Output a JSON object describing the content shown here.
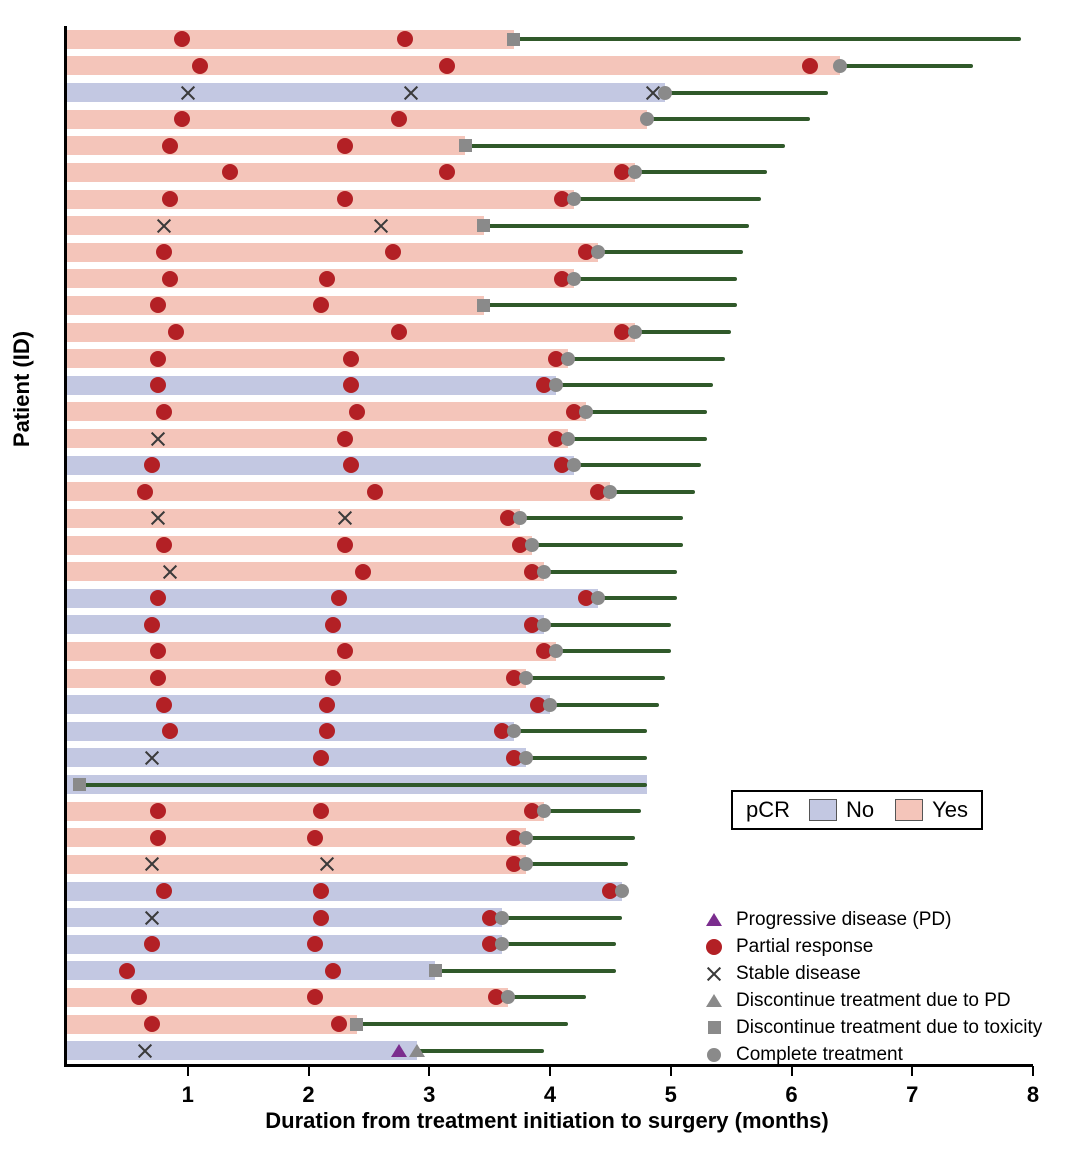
{
  "axes": {
    "x_label": "Duration from treatment initiation to surgery (months)",
    "y_label": "Patient (ID)"
  },
  "legend": {
    "pcr_title": "pCR",
    "pcr_no": "No",
    "pcr_yes": "Yes",
    "markers": [
      {
        "type": "progressive-disease",
        "label": "Progressive disease (PD)"
      },
      {
        "type": "partial-response",
        "label": "Partial response"
      },
      {
        "type": "stable-disease",
        "label": "Stable disease"
      },
      {
        "type": "discontinue-pd",
        "label": "Discontinue treatment due to PD"
      },
      {
        "type": "discontinue-toxicity",
        "label": "Discontinue treatment due to toxicity"
      },
      {
        "type": "complete-treatment",
        "label": "Complete treatment"
      }
    ]
  },
  "colors": {
    "pcr_yes": "#f4c5ba",
    "pcr_no": "#c3c8e2",
    "line": "#30592a",
    "partial_response": "#b32025",
    "gray_marker": "#8a8a8a",
    "progressive": "#7b2d8e",
    "stable_x": "#3a3a3a"
  },
  "chart_data": {
    "type": "swimmer",
    "title": "",
    "xlabel": "Duration from treatment initiation to surgery (months)",
    "ylabel": "Patient (ID)",
    "xlim": [
      0,
      8
    ],
    "x_ticks": [
      1,
      2,
      3,
      4,
      5,
      6,
      7,
      8
    ],
    "marker_types": {
      "PR": "Partial response",
      "SD": "Stable disease",
      "PD": "Progressive disease (PD)",
      "DPD": "Discontinue treatment due to PD",
      "DTOX": "Discontinue treatment due to toxicity",
      "CT": "Complete treatment"
    },
    "rows": [
      {
        "pcr": "Yes",
        "bar_end": 3.7,
        "surgery": 7.9,
        "markers": [
          {
            "t": "PR",
            "x": 0.95
          },
          {
            "t": "PR",
            "x": 2.8
          },
          {
            "t": "DTOX",
            "x": 3.7
          }
        ]
      },
      {
        "pcr": "Yes",
        "bar_end": 6.4,
        "surgery": 7.5,
        "markers": [
          {
            "t": "PR",
            "x": 1.1
          },
          {
            "t": "PR",
            "x": 3.15
          },
          {
            "t": "PR",
            "x": 6.15
          },
          {
            "t": "CT",
            "x": 6.4
          }
        ]
      },
      {
        "pcr": "No",
        "bar_end": 4.95,
        "surgery": 6.3,
        "markers": [
          {
            "t": "SD",
            "x": 1.0
          },
          {
            "t": "SD",
            "x": 2.85
          },
          {
            "t": "SD",
            "x": 4.85
          },
          {
            "t": "CT",
            "x": 4.95
          }
        ]
      },
      {
        "pcr": "Yes",
        "bar_end": 4.8,
        "surgery": 6.15,
        "markers": [
          {
            "t": "PR",
            "x": 0.95
          },
          {
            "t": "PR",
            "x": 2.75
          },
          {
            "t": "CT",
            "x": 4.8
          }
        ]
      },
      {
        "pcr": "Yes",
        "bar_end": 3.3,
        "surgery": 5.95,
        "markers": [
          {
            "t": "PR",
            "x": 0.85
          },
          {
            "t": "PR",
            "x": 2.3
          },
          {
            "t": "DTOX",
            "x": 3.3
          }
        ]
      },
      {
        "pcr": "Yes",
        "bar_end": 4.7,
        "surgery": 5.8,
        "markers": [
          {
            "t": "PR",
            "x": 1.35
          },
          {
            "t": "PR",
            "x": 3.15
          },
          {
            "t": "PR",
            "x": 4.6
          },
          {
            "t": "CT",
            "x": 4.7
          }
        ]
      },
      {
        "pcr": "Yes",
        "bar_end": 4.2,
        "surgery": 5.75,
        "markers": [
          {
            "t": "PR",
            "x": 0.85
          },
          {
            "t": "PR",
            "x": 2.3
          },
          {
            "t": "PR",
            "x": 4.1
          },
          {
            "t": "CT",
            "x": 4.2
          }
        ]
      },
      {
        "pcr": "Yes",
        "bar_end": 3.45,
        "surgery": 5.65,
        "markers": [
          {
            "t": "SD",
            "x": 0.8
          },
          {
            "t": "SD",
            "x": 2.6
          },
          {
            "t": "DTOX",
            "x": 3.45
          }
        ]
      },
      {
        "pcr": "Yes",
        "bar_end": 4.4,
        "surgery": 5.6,
        "markers": [
          {
            "t": "PR",
            "x": 0.8
          },
          {
            "t": "PR",
            "x": 2.7
          },
          {
            "t": "PR",
            "x": 4.3
          },
          {
            "t": "CT",
            "x": 4.4
          }
        ]
      },
      {
        "pcr": "Yes",
        "bar_end": 4.2,
        "surgery": 5.55,
        "markers": [
          {
            "t": "PR",
            "x": 0.85
          },
          {
            "t": "PR",
            "x": 2.15
          },
          {
            "t": "PR",
            "x": 4.1
          },
          {
            "t": "CT",
            "x": 4.2
          }
        ]
      },
      {
        "pcr": "Yes",
        "bar_end": 3.45,
        "surgery": 5.55,
        "markers": [
          {
            "t": "PR",
            "x": 0.75
          },
          {
            "t": "PR",
            "x": 2.1
          },
          {
            "t": "DTOX",
            "x": 3.45
          }
        ]
      },
      {
        "pcr": "Yes",
        "bar_end": 4.7,
        "surgery": 5.5,
        "markers": [
          {
            "t": "PR",
            "x": 0.9
          },
          {
            "t": "PR",
            "x": 2.75
          },
          {
            "t": "PR",
            "x": 4.6
          },
          {
            "t": "CT",
            "x": 4.7
          }
        ]
      },
      {
        "pcr": "Yes",
        "bar_end": 4.15,
        "surgery": 5.45,
        "markers": [
          {
            "t": "PR",
            "x": 0.75
          },
          {
            "t": "PR",
            "x": 2.35
          },
          {
            "t": "PR",
            "x": 4.05
          },
          {
            "t": "CT",
            "x": 4.15
          }
        ]
      },
      {
        "pcr": "No",
        "bar_end": 4.05,
        "surgery": 5.35,
        "markers": [
          {
            "t": "PR",
            "x": 0.75
          },
          {
            "t": "PR",
            "x": 2.35
          },
          {
            "t": "PR",
            "x": 3.95
          },
          {
            "t": "CT",
            "x": 4.05
          }
        ]
      },
      {
        "pcr": "Yes",
        "bar_end": 4.3,
        "surgery": 5.3,
        "markers": [
          {
            "t": "PR",
            "x": 0.8
          },
          {
            "t": "PR",
            "x": 2.4
          },
          {
            "t": "PR",
            "x": 4.2
          },
          {
            "t": "CT",
            "x": 4.3
          }
        ]
      },
      {
        "pcr": "Yes",
        "bar_end": 4.15,
        "surgery": 5.3,
        "markers": [
          {
            "t": "SD",
            "x": 0.75
          },
          {
            "t": "PR",
            "x": 2.3
          },
          {
            "t": "PR",
            "x": 4.05
          },
          {
            "t": "CT",
            "x": 4.15
          }
        ]
      },
      {
        "pcr": "No",
        "bar_end": 4.2,
        "surgery": 5.25,
        "markers": [
          {
            "t": "PR",
            "x": 0.7
          },
          {
            "t": "PR",
            "x": 2.35
          },
          {
            "t": "PR",
            "x": 4.1
          },
          {
            "t": "CT",
            "x": 4.2
          }
        ]
      },
      {
        "pcr": "Yes",
        "bar_end": 4.5,
        "surgery": 5.2,
        "markers": [
          {
            "t": "PR",
            "x": 0.65
          },
          {
            "t": "PR",
            "x": 2.55
          },
          {
            "t": "PR",
            "x": 4.4
          },
          {
            "t": "CT",
            "x": 4.5
          }
        ]
      },
      {
        "pcr": "Yes",
        "bar_end": 3.75,
        "surgery": 5.1,
        "markers": [
          {
            "t": "SD",
            "x": 0.75
          },
          {
            "t": "SD",
            "x": 2.3
          },
          {
            "t": "PR",
            "x": 3.65
          },
          {
            "t": "CT",
            "x": 3.75
          }
        ]
      },
      {
        "pcr": "Yes",
        "bar_end": 3.85,
        "surgery": 5.1,
        "markers": [
          {
            "t": "PR",
            "x": 0.8
          },
          {
            "t": "PR",
            "x": 2.3
          },
          {
            "t": "PR",
            "x": 3.75
          },
          {
            "t": "CT",
            "x": 3.85
          }
        ]
      },
      {
        "pcr": "Yes",
        "bar_end": 3.95,
        "surgery": 5.05,
        "markers": [
          {
            "t": "SD",
            "x": 0.85
          },
          {
            "t": "PR",
            "x": 2.45
          },
          {
            "t": "PR",
            "x": 3.85
          },
          {
            "t": "CT",
            "x": 3.95
          }
        ]
      },
      {
        "pcr": "No",
        "bar_end": 4.4,
        "surgery": 5.05,
        "markers": [
          {
            "t": "PR",
            "x": 0.75
          },
          {
            "t": "PR",
            "x": 2.25
          },
          {
            "t": "PR",
            "x": 4.3
          },
          {
            "t": "CT",
            "x": 4.4
          }
        ]
      },
      {
        "pcr": "No",
        "bar_end": 3.95,
        "surgery": 5.0,
        "markers": [
          {
            "t": "PR",
            "x": 0.7
          },
          {
            "t": "PR",
            "x": 2.2
          },
          {
            "t": "PR",
            "x": 3.85
          },
          {
            "t": "CT",
            "x": 3.95
          }
        ]
      },
      {
        "pcr": "Yes",
        "bar_end": 4.05,
        "surgery": 5.0,
        "markers": [
          {
            "t": "PR",
            "x": 0.75
          },
          {
            "t": "PR",
            "x": 2.3
          },
          {
            "t": "PR",
            "x": 3.95
          },
          {
            "t": "CT",
            "x": 4.05
          }
        ]
      },
      {
        "pcr": "Yes",
        "bar_end": 3.8,
        "surgery": 4.95,
        "markers": [
          {
            "t": "PR",
            "x": 0.75
          },
          {
            "t": "PR",
            "x": 2.2
          },
          {
            "t": "PR",
            "x": 3.7
          },
          {
            "t": "CT",
            "x": 3.8
          }
        ]
      },
      {
        "pcr": "No",
        "bar_end": 4.0,
        "surgery": 4.9,
        "markers": [
          {
            "t": "PR",
            "x": 0.8
          },
          {
            "t": "PR",
            "x": 2.15
          },
          {
            "t": "PR",
            "x": 3.9
          },
          {
            "t": "CT",
            "x": 4.0
          }
        ]
      },
      {
        "pcr": "No",
        "bar_end": 3.7,
        "surgery": 4.8,
        "markers": [
          {
            "t": "PR",
            "x": 0.85
          },
          {
            "t": "PR",
            "x": 2.15
          },
          {
            "t": "PR",
            "x": 3.6
          },
          {
            "t": "CT",
            "x": 3.7
          }
        ]
      },
      {
        "pcr": "No",
        "bar_end": 3.8,
        "surgery": 4.8,
        "markers": [
          {
            "t": "SD",
            "x": 0.7
          },
          {
            "t": "PR",
            "x": 2.1
          },
          {
            "t": "PR",
            "x": 3.7
          },
          {
            "t": "CT",
            "x": 3.8
          }
        ]
      },
      {
        "pcr": "No",
        "bar_end": 4.8,
        "surgery": 4.8,
        "markers": [
          {
            "t": "DTOX",
            "x": 0.1
          }
        ]
      },
      {
        "pcr": "Yes",
        "bar_end": 3.95,
        "surgery": 4.75,
        "markers": [
          {
            "t": "PR",
            "x": 0.75
          },
          {
            "t": "PR",
            "x": 2.1
          },
          {
            "t": "PR",
            "x": 3.85
          },
          {
            "t": "CT",
            "x": 3.95
          }
        ]
      },
      {
        "pcr": "Yes",
        "bar_end": 3.8,
        "surgery": 4.7,
        "markers": [
          {
            "t": "PR",
            "x": 0.75
          },
          {
            "t": "PR",
            "x": 2.05
          },
          {
            "t": "PR",
            "x": 3.7
          },
          {
            "t": "CT",
            "x": 3.8
          }
        ]
      },
      {
        "pcr": "Yes",
        "bar_end": 3.8,
        "surgery": 4.65,
        "markers": [
          {
            "t": "SD",
            "x": 0.7
          },
          {
            "t": "SD",
            "x": 2.15
          },
          {
            "t": "PR",
            "x": 3.7
          },
          {
            "t": "CT",
            "x": 3.8
          }
        ]
      },
      {
        "pcr": "No",
        "bar_end": 4.6,
        "surgery": 4.65,
        "markers": [
          {
            "t": "PR",
            "x": 0.8
          },
          {
            "t": "PR",
            "x": 2.1
          },
          {
            "t": "PR",
            "x": 4.5
          },
          {
            "t": "CT",
            "x": 4.6
          }
        ]
      },
      {
        "pcr": "No",
        "bar_end": 3.6,
        "surgery": 4.6,
        "markers": [
          {
            "t": "SD",
            "x": 0.7
          },
          {
            "t": "PR",
            "x": 2.1
          },
          {
            "t": "PR",
            "x": 3.5
          },
          {
            "t": "CT",
            "x": 3.6
          }
        ]
      },
      {
        "pcr": "No",
        "bar_end": 3.6,
        "surgery": 4.55,
        "markers": [
          {
            "t": "PR",
            "x": 0.7
          },
          {
            "t": "PR",
            "x": 2.05
          },
          {
            "t": "PR",
            "x": 3.5
          },
          {
            "t": "CT",
            "x": 3.6
          }
        ]
      },
      {
        "pcr": "No",
        "bar_end": 3.05,
        "surgery": 4.55,
        "markers": [
          {
            "t": "PR",
            "x": 0.5
          },
          {
            "t": "PR",
            "x": 2.2
          },
          {
            "t": "DTOX",
            "x": 3.05
          }
        ]
      },
      {
        "pcr": "Yes",
        "bar_end": 3.65,
        "surgery": 4.3,
        "markers": [
          {
            "t": "PR",
            "x": 0.6
          },
          {
            "t": "PR",
            "x": 2.05
          },
          {
            "t": "PR",
            "x": 3.55
          },
          {
            "t": "CT",
            "x": 3.65
          }
        ]
      },
      {
        "pcr": "Yes",
        "bar_end": 2.4,
        "surgery": 4.15,
        "markers": [
          {
            "t": "PR",
            "x": 0.7
          },
          {
            "t": "PR",
            "x": 2.25
          },
          {
            "t": "DTOX",
            "x": 2.4
          }
        ]
      },
      {
        "pcr": "No",
        "bar_end": 2.9,
        "surgery": 3.95,
        "markers": [
          {
            "t": "SD",
            "x": 0.65
          },
          {
            "t": "PD",
            "x": 2.75
          },
          {
            "t": "DPD",
            "x": 2.9
          }
        ]
      }
    ]
  }
}
